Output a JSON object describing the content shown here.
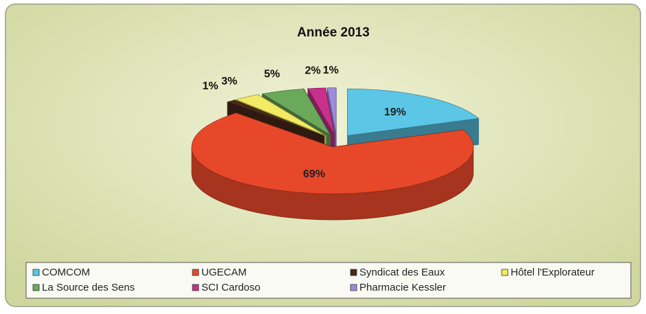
{
  "chart_data": {
    "type": "pie",
    "title": "Année 2013",
    "categories": [
      "COMCOM",
      "UGECAM",
      "Syndicat des Eaux",
      "Hôtel l'Explorateur",
      "La Source des Sens",
      "SCI Cardoso",
      "Pharmacie Kessler"
    ],
    "values": [
      19,
      69,
      1,
      3,
      5,
      2,
      1
    ],
    "value_labels": [
      "19%",
      "69%",
      "1%",
      "3%",
      "5%",
      "2%",
      "1%"
    ],
    "colors": [
      "#5cc6e6",
      "#e8482a",
      "#4a2a1a",
      "#f2ea62",
      "#6aa85a",
      "#c8308c",
      "#9c8cdc"
    ],
    "legend": "bottom"
  }
}
